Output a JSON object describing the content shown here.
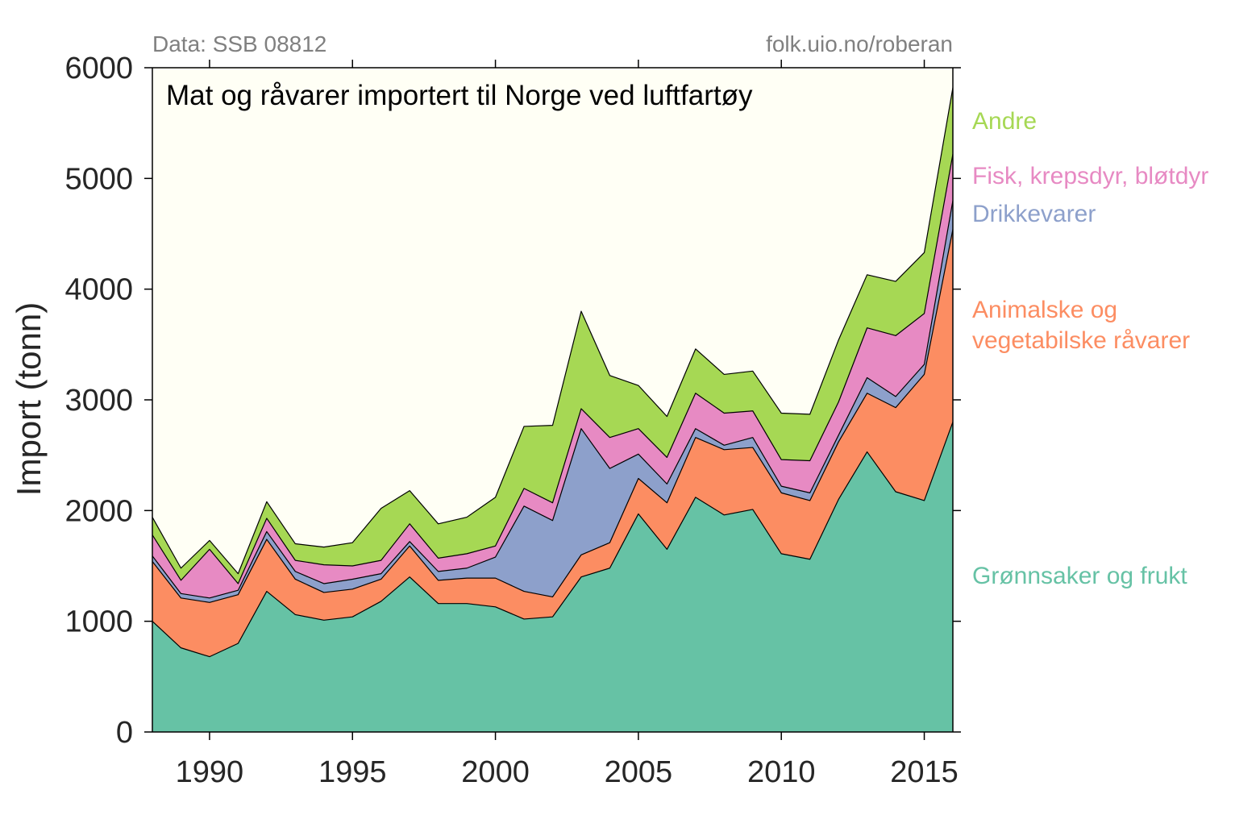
{
  "chart_data": {
    "type": "area",
    "stacked": true,
    "title": "Mat og råvarer importert til Norge ved luftfartøy",
    "source_left": "Data: SSB 08812",
    "source_right": "folk.uio.no/roberan",
    "xlabel": "",
    "ylabel": "Import (tonn)",
    "xlim": [
      1988,
      2016
    ],
    "ylim": [
      0,
      6000
    ],
    "x_ticks": [
      1990,
      1995,
      2000,
      2005,
      2010,
      2015
    ],
    "y_ticks": [
      0,
      1000,
      2000,
      3000,
      4000,
      5000,
      6000
    ],
    "grid": false,
    "legend_placement": "right",
    "background_color": "#fffff5",
    "x": [
      1988,
      1989,
      1990,
      1991,
      1992,
      1993,
      1994,
      1995,
      1996,
      1997,
      1998,
      1999,
      2000,
      2001,
      2002,
      2003,
      2004,
      2005,
      2006,
      2007,
      2008,
      2009,
      2010,
      2011,
      2012,
      2013,
      2014,
      2015,
      2016
    ],
    "series": [
      {
        "name": "Grønnsaker og frukt",
        "color": "#66c2a5",
        "values": [
          1000,
          760,
          680,
          800,
          1270,
          1060,
          1010,
          1040,
          1180,
          1400,
          1160,
          1160,
          1130,
          1020,
          1040,
          1400,
          1480,
          1970,
          1650,
          2120,
          1960,
          2010,
          1610,
          1560,
          2100,
          2530,
          2170,
          2090,
          2800
        ]
      },
      {
        "name": "Animalske og vegetabilske råvarer",
        "color": "#fc8d62",
        "values": [
          540,
          450,
          490,
          440,
          470,
          320,
          250,
          250,
          200,
          280,
          210,
          230,
          260,
          250,
          180,
          200,
          230,
          320,
          420,
          540,
          590,
          560,
          550,
          530,
          520,
          530,
          760,
          1140,
          1740
        ]
      },
      {
        "name": "Drikkevarer",
        "color": "#8da0cb",
        "values": [
          50,
          40,
          40,
          40,
          70,
          70,
          80,
          90,
          50,
          40,
          80,
          90,
          190,
          770,
          690,
          1140,
          670,
          220,
          170,
          80,
          40,
          90,
          60,
          70,
          60,
          140,
          100,
          90,
          260
        ]
      },
      {
        "name": "Fisk, krepsdyr, bløtdyr",
        "color": "#e78ac3",
        "values": [
          190,
          120,
          440,
          60,
          120,
          100,
          170,
          120,
          120,
          160,
          120,
          130,
          100,
          160,
          160,
          180,
          280,
          230,
          240,
          320,
          290,
          240,
          240,
          290,
          300,
          450,
          550,
          460,
          420
        ]
      },
      {
        "name": "Andre",
        "color": "#a6d854",
        "values": [
          160,
          110,
          80,
          90,
          150,
          150,
          160,
          210,
          470,
          300,
          310,
          330,
          440,
          560,
          700,
          880,
          560,
          390,
          370,
          400,
          350,
          360,
          420,
          420,
          560,
          480,
          490,
          550,
          600
        ]
      }
    ],
    "legend_lines": [
      [
        "Andre"
      ],
      [
        "Fisk, krepsdyr, bløtdyr"
      ],
      [
        "Drikkevarer"
      ],
      [
        "Animalske og",
        "vegetabilske råvarer"
      ],
      [
        "Grønnsaker og frukt"
      ]
    ]
  }
}
